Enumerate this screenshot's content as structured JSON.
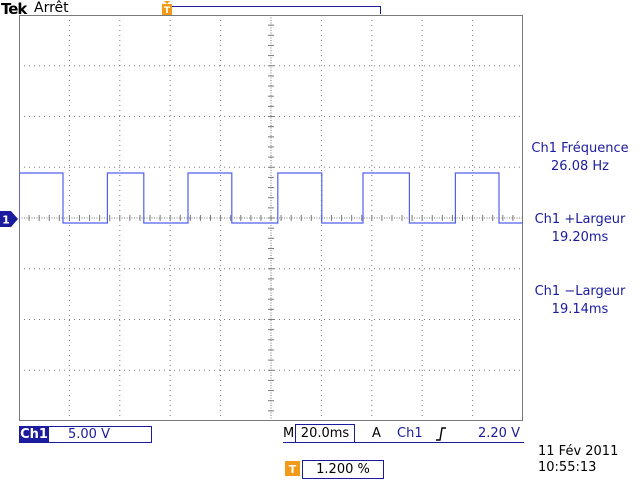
{
  "header": {
    "brand": "Tek",
    "state": "Arrêt"
  },
  "measurements": [
    {
      "label": "Ch1 Fréquence",
      "value": "26.08 Hz"
    },
    {
      "label": "Ch1 +Largeur",
      "value": "19.20ms"
    },
    {
      "label": "Ch1 −Largeur",
      "value": "19.14ms"
    }
  ],
  "channel": {
    "name": "Ch1",
    "marker": "1",
    "scale": "5.00 V"
  },
  "timebase": {
    "mode_label": "M",
    "value": "20.0ms",
    "trigger_label": "A",
    "trigger_source": "Ch1",
    "trigger_level": "2.20 V"
  },
  "trigger_position": "1.200 %",
  "datetime": {
    "date": "11 Fév  2011",
    "time": "10:55:13"
  },
  "chart_data": {
    "type": "line",
    "title": "",
    "xlabel": "",
    "ylabel": "",
    "grid": true,
    "x_divisions": 10,
    "y_divisions": 8,
    "series": [
      {
        "values": [
          {
            "x": 0.0,
            "y": 0
          },
          {
            "x": 0.0,
            "y": 1
          },
          {
            "x": 22.0,
            "y": 1
          },
          {
            "x": 22.0,
            "y": 0
          },
          {
            "x": 44.2,
            "y": 0
          },
          {
            "x": 44.2,
            "y": 1
          },
          {
            "x": 62.4,
            "y": 1
          },
          {
            "x": 62.4,
            "y": 0
          },
          {
            "x": 84.5,
            "y": 0
          },
          {
            "x": 84.5,
            "y": 1
          },
          {
            "x": 106.4,
            "y": 1
          },
          {
            "x": 106.4,
            "y": 0
          },
          {
            "x": 129.4,
            "y": 0
          },
          {
            "x": 129.4,
            "y": 1
          },
          {
            "x": 151.4,
            "y": 1
          },
          {
            "x": 151.4,
            "y": 0
          },
          {
            "x": 172.0,
            "y": 0
          },
          {
            "x": 172.0,
            "y": 1
          },
          {
            "x": 195.2,
            "y": 1
          },
          {
            "x": 195.2,
            "y": 0
          },
          {
            "x": 218.2,
            "y": 0
          },
          {
            "x": 218.2,
            "y": 1
          },
          {
            "x": 240.0,
            "y": 1
          },
          {
            "x": 240.0,
            "y": 0
          },
          {
            "x": 252.0,
            "y": 0
          }
        ]
      }
    ]
  },
  "colors": {
    "accent": "#1b1b9e",
    "trace": "#5060ee",
    "grid": "#7a7a7a",
    "trigger": "#f29a1a"
  }
}
